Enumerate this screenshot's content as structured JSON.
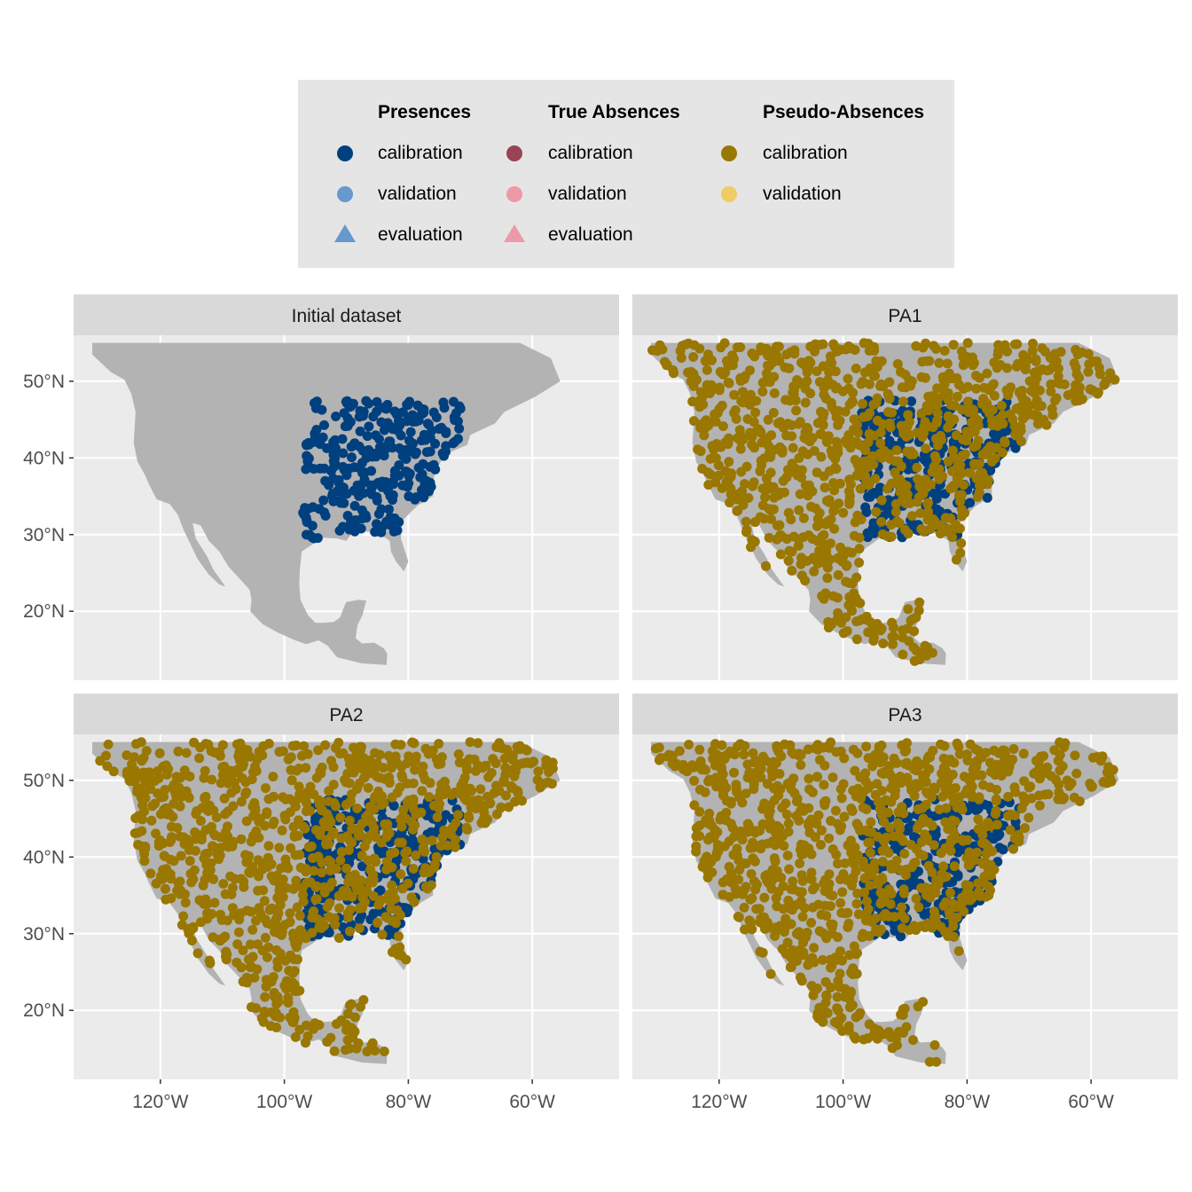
{
  "colors": {
    "presence_calibration": "#00407f",
    "presence_validation": "#6699cc",
    "presence_evaluation": "#6699cc",
    "absence_calibration": "#994455",
    "absence_validation": "#ee99aa",
    "absence_evaluation": "#ee99aa",
    "pa_calibration": "#997700",
    "pa_validation": "#eecc66",
    "land": "#b3b3b3",
    "panel": "#ebebeb",
    "strip": "#d9d9d9",
    "legend_bg": "#e5e5e5",
    "grid": "#ffffff"
  },
  "legend": {
    "groups": [
      {
        "title": "Presences",
        "items": [
          {
            "label": "calibration",
            "shape": "circle",
            "color_key": "presence_calibration"
          },
          {
            "label": "validation",
            "shape": "circle",
            "color_key": "presence_validation"
          },
          {
            "label": "evaluation",
            "shape": "triangle",
            "color_key": "presence_evaluation"
          }
        ]
      },
      {
        "title": "True Absences",
        "items": [
          {
            "label": "calibration",
            "shape": "circle",
            "color_key": "absence_calibration"
          },
          {
            "label": "validation",
            "shape": "circle",
            "color_key": "absence_validation"
          },
          {
            "label": "evaluation",
            "shape": "triangle",
            "color_key": "absence_evaluation"
          }
        ]
      },
      {
        "title": "Pseudo-Absences",
        "items": [
          {
            "label": "calibration",
            "shape": "circle",
            "color_key": "pa_calibration"
          },
          {
            "label": "validation",
            "shape": "circle",
            "color_key": "pa_validation"
          }
        ]
      }
    ]
  },
  "chart_data": {
    "type": "scatter",
    "x_ticks": [
      {
        "value": -120,
        "label": "120°W"
      },
      {
        "value": -100,
        "label": "100°W"
      },
      {
        "value": -80,
        "label": "80°W"
      },
      {
        "value": -60,
        "label": "60°W"
      }
    ],
    "y_ticks": [
      {
        "value": 20,
        "label": "20°N"
      },
      {
        "value": 30,
        "label": "30°N"
      },
      {
        "value": 40,
        "label": "40°N"
      },
      {
        "value": 50,
        "label": "50°N"
      }
    ],
    "xlim": [
      -134,
      -46
    ],
    "ylim": [
      11,
      56
    ],
    "land_outline": [
      [
        -131,
        55
      ],
      [
        -121,
        55
      ],
      [
        -110,
        55
      ],
      [
        -98,
        55
      ],
      [
        -95,
        55
      ],
      [
        -90,
        55
      ],
      [
        -82,
        55
      ],
      [
        -77,
        55
      ],
      [
        -68,
        55
      ],
      [
        -62,
        55
      ],
      [
        -57,
        53
      ],
      [
        -55.5,
        50
      ],
      [
        -59.5,
        48
      ],
      [
        -64.5,
        46
      ],
      [
        -66,
        44.5
      ],
      [
        -70,
        43
      ],
      [
        -70.5,
        41.7
      ],
      [
        -74,
        40.5
      ],
      [
        -75.5,
        38.5
      ],
      [
        -76,
        37
      ],
      [
        -76,
        35
      ],
      [
        -78.5,
        33.8
      ],
      [
        -81,
        31.8
      ],
      [
        -81.2,
        29.5
      ],
      [
        -80,
        26.5
      ],
      [
        -80.7,
        25.2
      ],
      [
        -82,
        26.5
      ],
      [
        -82.8,
        27.8
      ],
      [
        -83,
        29.2
      ],
      [
        -84.5,
        30
      ],
      [
        -86.5,
        30.4
      ],
      [
        -89,
        30.3
      ],
      [
        -90,
        29.2
      ],
      [
        -91.5,
        29.5
      ],
      [
        -94,
        29.6
      ],
      [
        -95.5,
        28.7
      ],
      [
        -97.2,
        27.8
      ],
      [
        -97.5,
        25.5
      ],
      [
        -97.6,
        23.5
      ],
      [
        -97.4,
        21.5
      ],
      [
        -96.2,
        19.5
      ],
      [
        -95,
        18.5
      ],
      [
        -93.5,
        18.5
      ],
      [
        -92,
        18.6
      ],
      [
        -91,
        19.2
      ],
      [
        -90.4,
        20.5
      ],
      [
        -90,
        21.2
      ],
      [
        -88,
        21.5
      ],
      [
        -86.8,
        21.4
      ],
      [
        -87.4,
        19.5
      ],
      [
        -88.2,
        18.2
      ],
      [
        -88.5,
        16.5
      ],
      [
        -87.5,
        15.8
      ],
      [
        -85.5,
        15.9
      ],
      [
        -84,
        15.2
      ],
      [
        -83.4,
        14.5
      ],
      [
        -83.5,
        13
      ],
      [
        -87.5,
        13.2
      ],
      [
        -89.5,
        13.6
      ],
      [
        -91.5,
        14
      ],
      [
        -93,
        15.5
      ],
      [
        -94.5,
        16.2
      ],
      [
        -96.5,
        15.7
      ],
      [
        -98.5,
        16.3
      ],
      [
        -101,
        17.2
      ],
      [
        -103.5,
        18.3
      ],
      [
        -105.5,
        20
      ],
      [
        -105.3,
        21.5
      ],
      [
        -105.6,
        22.8
      ],
      [
        -107.5,
        24.5
      ],
      [
        -109,
        25.8
      ],
      [
        -110.5,
        27.8
      ],
      [
        -112.2,
        29.2
      ],
      [
        -113.5,
        31.2
      ],
      [
        -114.8,
        31.5
      ],
      [
        -114.3,
        29.5
      ],
      [
        -112.5,
        27.2
      ],
      [
        -111.5,
        25.5
      ],
      [
        -110.2,
        24
      ],
      [
        -109.5,
        23.2
      ],
      [
        -110.5,
        23.5
      ],
      [
        -112.2,
        24.8
      ],
      [
        -114,
        26.8
      ],
      [
        -115,
        28.5
      ],
      [
        -116.2,
        30.5
      ],
      [
        -117.2,
        32.6
      ],
      [
        -118.5,
        34
      ],
      [
        -120.6,
        34.6
      ],
      [
        -121.8,
        36.5
      ],
      [
        -122.5,
        37.8
      ],
      [
        -123.7,
        39.5
      ],
      [
        -124.3,
        42
      ],
      [
        -124,
        46
      ],
      [
        -124.7,
        48.4
      ],
      [
        -125.8,
        50.2
      ],
      [
        -128,
        51.2
      ],
      [
        -131,
        53.5
      ]
    ],
    "facets": [
      {
        "name": "Initial dataset",
        "seed": 11,
        "presence_count": 300,
        "pa_count": 0
      },
      {
        "name": "PA1",
        "seed": 23,
        "presence_count": 300,
        "pa_count": 1000
      },
      {
        "name": "PA2",
        "seed": 37,
        "presence_count": 300,
        "pa_count": 1000
      },
      {
        "name": "PA3",
        "seed": 53,
        "presence_count": 300,
        "pa_count": 1000
      }
    ],
    "presence_region": {
      "lon": [
        -97,
        -71.5
      ],
      "lat": [
        29.5,
        47.5
      ]
    },
    "pseudo_absence_region": {
      "lon": [
        -131,
        -53
      ],
      "lat": [
        13,
        55
      ]
    }
  }
}
